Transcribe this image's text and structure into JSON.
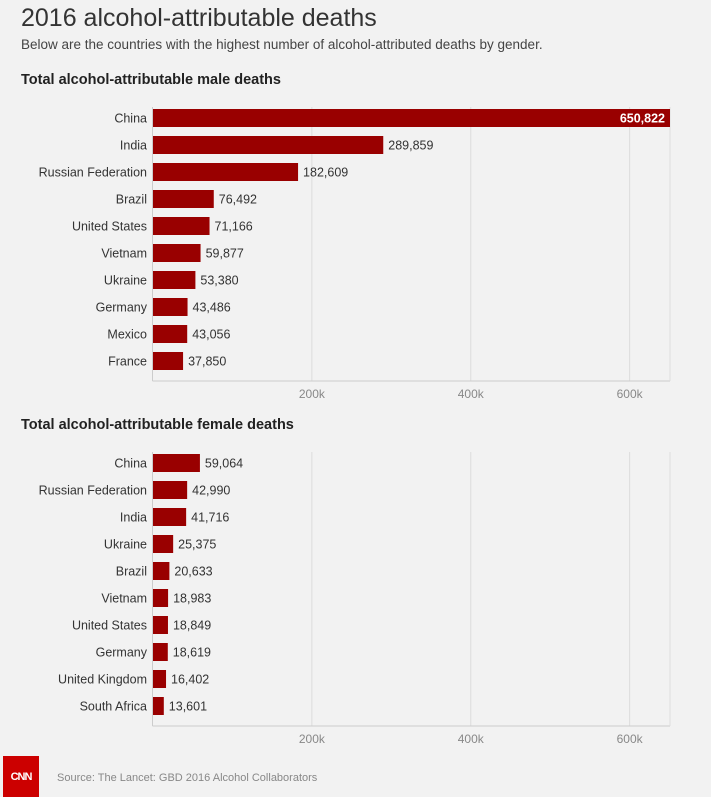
{
  "title": "2016 alcohol-attributable deaths",
  "subtitle": "Below are the countries with the highest number of alcohol-attributed deaths by gender.",
  "source": "Source: The Lancet: GBD 2016 Alcohol Collaborators",
  "logo": "CNN",
  "colors": {
    "bar": "#990000",
    "background": "#f2f2f2",
    "grid": "#dcdcdc"
  },
  "chart_data": [
    {
      "type": "bar",
      "orientation": "horizontal",
      "title": "Total alcohol-attributable male deaths",
      "categories": [
        "China",
        "India",
        "Russian Federation",
        "Brazil",
        "United States",
        "Vietnam",
        "Ukraine",
        "Germany",
        "Mexico",
        "France"
      ],
      "values": [
        650822,
        289859,
        182609,
        76492,
        71166,
        59877,
        53380,
        43486,
        43056,
        37850
      ],
      "labels": [
        "650,822",
        "289,859",
        "182,609",
        "76,492",
        "71,166",
        "59,877",
        "53,380",
        "43,486",
        "43,056",
        "37,850"
      ],
      "xticks": [
        200000,
        400000,
        600000
      ],
      "xtick_labels": [
        "200k",
        "400k",
        "600k"
      ],
      "xlim": [
        0,
        650822
      ],
      "grid": true
    },
    {
      "type": "bar",
      "orientation": "horizontal",
      "title": "Total alcohol-attributable female deaths",
      "categories": [
        "China",
        "Russian Federation",
        "India",
        "Ukraine",
        "Brazil",
        "Vietnam",
        "United States",
        "Germany",
        "United Kingdom",
        "South Africa"
      ],
      "values": [
        59064,
        42990,
        41716,
        25375,
        20633,
        18983,
        18849,
        18619,
        16402,
        13601
      ],
      "labels": [
        "59,064",
        "42,990",
        "41,716",
        "25,375",
        "20,633",
        "18,983",
        "18,849",
        "18,619",
        "16,402",
        "13,601"
      ],
      "xticks": [
        200000,
        400000,
        600000
      ],
      "xtick_labels": [
        "200k",
        "400k",
        "600k"
      ],
      "xlim": [
        0,
        650822
      ],
      "grid": true
    }
  ]
}
